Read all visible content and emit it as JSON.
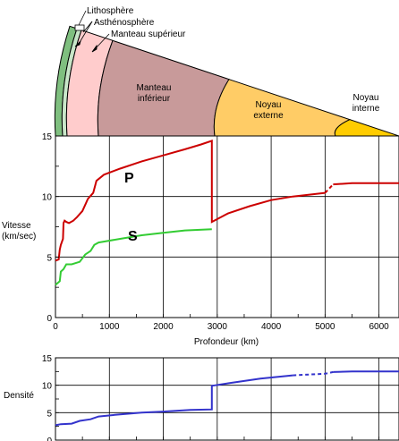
{
  "cross_section": {
    "layers": [
      {
        "name": "Lithosphère",
        "color": "#7fbf7f"
      },
      {
        "name": "Asthénosphère",
        "color": "#c8e6c8"
      },
      {
        "name": "Manteau supérieur",
        "color": "#ffcccc"
      },
      {
        "name": "Manteau\ninférieur",
        "color": "#c89a9a"
      },
      {
        "name": "Noyau\nexterne",
        "color": "#ffcc66"
      },
      {
        "name": "Noyau\ninterne",
        "color": "#ffcc00"
      }
    ],
    "boundary_depths_km": [
      0,
      100,
      200,
      700,
      2900,
      5100,
      6371
    ]
  },
  "chart_data": [
    {
      "type": "line",
      "ylabel": "Vitesse\n(km/sec)",
      "xlabel": "Profondeur (km)",
      "xlim": [
        0,
        6371
      ],
      "ylim": [
        0,
        15
      ],
      "x_ticks": [
        "0",
        "1000",
        "2000",
        "3000",
        "4000",
        "5000",
        "6000"
      ],
      "y_ticks": [
        "0",
        "5",
        "10",
        "15"
      ],
      "grid": true,
      "series": [
        {
          "name": "P",
          "color": "#cc0000",
          "points": [
            [
              0,
              4.7
            ],
            [
              60,
              4.8
            ],
            [
              80,
              5.6
            ],
            [
              100,
              6.0
            ],
            [
              140,
              6.5
            ],
            [
              150,
              7.8
            ],
            [
              170,
              8.0
            ],
            [
              200,
              7.9
            ],
            [
              250,
              7.8
            ],
            [
              330,
              8.0
            ],
            [
              400,
              8.3
            ],
            [
              500,
              8.8
            ],
            [
              560,
              9.4
            ],
            [
              600,
              9.8
            ],
            [
              660,
              10.1
            ],
            [
              700,
              10.3
            ],
            [
              760,
              11.3
            ],
            [
              900,
              11.8
            ],
            [
              1200,
              12.3
            ],
            [
              1600,
              12.9
            ],
            [
              2000,
              13.4
            ],
            [
              2400,
              13.9
            ],
            [
              2700,
              14.3
            ],
            [
              2900,
              14.6
            ],
            [
              2900,
              7.9
            ],
            [
              3200,
              8.6
            ],
            [
              3600,
              9.2
            ],
            [
              4000,
              9.7
            ],
            [
              4400,
              10.0
            ],
            [
              4800,
              10.2
            ],
            [
              5000,
              10.3
            ],
            [
              5150,
              11.0
            ],
            [
              5500,
              11.1
            ],
            [
              6371,
              11.1
            ]
          ],
          "dashed_segment": [
            5000,
            5150
          ]
        },
        {
          "name": "S",
          "color": "#33cc33",
          "points": [
            [
              0,
              2.7
            ],
            [
              80,
              3.0
            ],
            [
              100,
              3.8
            ],
            [
              150,
              4.0
            ],
            [
              200,
              4.4
            ],
            [
              300,
              4.4
            ],
            [
              450,
              4.6
            ],
            [
              550,
              5.2
            ],
            [
              650,
              5.5
            ],
            [
              720,
              6.0
            ],
            [
              800,
              6.2
            ],
            [
              1200,
              6.5
            ],
            [
              1600,
              6.8
            ],
            [
              2000,
              7.0
            ],
            [
              2400,
              7.2
            ],
            [
              2900,
              7.3
            ]
          ]
        }
      ]
    },
    {
      "type": "line",
      "ylabel": "Densité",
      "xlim": [
        0,
        6371
      ],
      "ylim": [
        0,
        15
      ],
      "y_ticks": [
        "0",
        "5",
        "10",
        "15"
      ],
      "grid": true,
      "series": [
        {
          "color": "#3333cc",
          "points": [
            [
              0,
              2.7
            ],
            [
              100,
              2.9
            ],
            [
              300,
              3.0
            ],
            [
              450,
              3.5
            ],
            [
              650,
              3.8
            ],
            [
              800,
              4.3
            ],
            [
              1200,
              4.7
            ],
            [
              1600,
              5.0
            ],
            [
              2000,
              5.2
            ],
            [
              2500,
              5.5
            ],
            [
              2900,
              5.6
            ],
            [
              2900,
              9.9
            ],
            [
              3300,
              10.5
            ],
            [
              3800,
              11.2
            ],
            [
              4400,
              11.8
            ],
            [
              5000,
              12.1
            ],
            [
              5150,
              12.4
            ],
            [
              5500,
              12.5
            ],
            [
              6371,
              12.5
            ]
          ],
          "dashed_segment": [
            4800,
            5150
          ]
        }
      ]
    }
  ]
}
